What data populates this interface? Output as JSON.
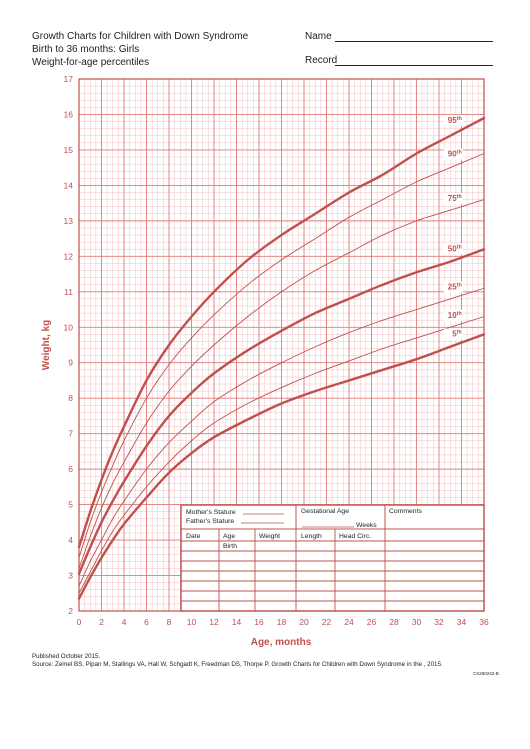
{
  "header": {
    "line1": "Growth Charts for Children with Down Syndrome",
    "line2": "Birth to 36 months: Girls",
    "line3": "Weight-for-age percentiles",
    "name_label": "Name",
    "record_label": "Record"
  },
  "colors": {
    "accent": "#c0504d",
    "grid_major": "#e07a7a",
    "grid_minor": "#f3c1c1"
  },
  "chart_data": {
    "type": "line",
    "xlabel": "Age, months",
    "ylabel": "Weight, kg",
    "xlim": [
      0,
      36
    ],
    "ylim": [
      2,
      17
    ],
    "x_ticks": [
      0,
      2,
      4,
      6,
      8,
      10,
      12,
      14,
      16,
      18,
      20,
      22,
      24,
      26,
      28,
      30,
      32,
      34,
      36
    ],
    "y_ticks": [
      2,
      3,
      4,
      5,
      6,
      7,
      8,
      9,
      10,
      11,
      12,
      13,
      14,
      15,
      16,
      17
    ],
    "grid": true,
    "series": [
      {
        "name": "95th",
        "bold": true,
        "x": [
          0,
          1,
          2,
          3,
          4,
          6,
          8,
          10,
          12,
          15,
          18,
          21,
          24,
          27,
          30,
          33,
          36
        ],
        "y": [
          3.8,
          4.8,
          5.7,
          6.5,
          7.2,
          8.5,
          9.5,
          10.3,
          11.0,
          11.9,
          12.6,
          13.2,
          13.8,
          14.3,
          14.9,
          15.4,
          15.9
        ]
      },
      {
        "name": "90th",
        "bold": false,
        "x": [
          0,
          1,
          2,
          3,
          4,
          6,
          8,
          10,
          12,
          15,
          18,
          21,
          24,
          27,
          30,
          33,
          36
        ],
        "y": [
          3.5,
          4.5,
          5.35,
          6.1,
          6.8,
          8.0,
          8.95,
          9.7,
          10.35,
          11.2,
          11.9,
          12.5,
          13.1,
          13.6,
          14.1,
          14.5,
          14.9
        ]
      },
      {
        "name": "75th",
        "bold": false,
        "x": [
          0,
          1,
          2,
          3,
          4,
          6,
          8,
          10,
          12,
          15,
          18,
          21,
          24,
          27,
          30,
          33,
          36
        ],
        "y": [
          3.2,
          4.1,
          4.9,
          5.6,
          6.2,
          7.3,
          8.2,
          8.9,
          9.5,
          10.3,
          11.0,
          11.6,
          12.1,
          12.6,
          13.0,
          13.3,
          13.6
        ]
      },
      {
        "name": "50th",
        "bold": true,
        "x": [
          0,
          1,
          2,
          3,
          4,
          6,
          8,
          10,
          12,
          15,
          18,
          21,
          24,
          27,
          30,
          33,
          36
        ],
        "y": [
          3.05,
          3.8,
          4.5,
          5.1,
          5.65,
          6.65,
          7.5,
          8.15,
          8.7,
          9.35,
          9.9,
          10.4,
          10.8,
          11.2,
          11.55,
          11.85,
          12.2
        ]
      },
      {
        "name": "25th",
        "bold": false,
        "x": [
          0,
          1,
          2,
          3,
          4,
          6,
          8,
          10,
          12,
          15,
          18,
          21,
          24,
          27,
          30,
          33,
          36
        ],
        "y": [
          2.7,
          3.4,
          4.0,
          4.6,
          5.1,
          6.0,
          6.75,
          7.35,
          7.9,
          8.5,
          9.0,
          9.45,
          9.85,
          10.2,
          10.5,
          10.8,
          11.1
        ]
      },
      {
        "name": "10th",
        "bold": false,
        "x": [
          0,
          1,
          2,
          3,
          4,
          6,
          8,
          10,
          12,
          15,
          18,
          21,
          24,
          27,
          30,
          33,
          36
        ],
        "y": [
          2.5,
          3.1,
          3.7,
          4.25,
          4.7,
          5.5,
          6.2,
          6.8,
          7.3,
          7.85,
          8.3,
          8.7,
          9.05,
          9.4,
          9.7,
          10.0,
          10.3
        ]
      },
      {
        "name": "5th",
        "bold": true,
        "x": [
          0,
          1,
          2,
          3,
          4,
          6,
          8,
          10,
          12,
          15,
          18,
          21,
          24,
          27,
          30,
          33,
          36
        ],
        "y": [
          2.35,
          2.95,
          3.5,
          4.0,
          4.45,
          5.2,
          5.9,
          6.45,
          6.9,
          7.4,
          7.85,
          8.2,
          8.5,
          8.8,
          9.1,
          9.45,
          9.8
        ]
      }
    ]
  },
  "record_form": {
    "mothers_stature": "Mother's Stature",
    "fathers_stature": "Father's Stature",
    "gestational_age": "Gestational Age",
    "weeks": "Weeks",
    "comments": "Comments",
    "columns": [
      "Date",
      "Age",
      "Weight",
      "Length",
      "Head Circ."
    ],
    "first_row_age": "Birth"
  },
  "footer": {
    "published": "Published October 2015.",
    "source": "Source: Zemel BS, Pipan M, Stallings VA, Hall W, Schgadt K, Freedman DS, Thorpe P. Growth Charts for Children with Down Syndrome in the  , 2015.",
    "code": "CS260242-B"
  }
}
